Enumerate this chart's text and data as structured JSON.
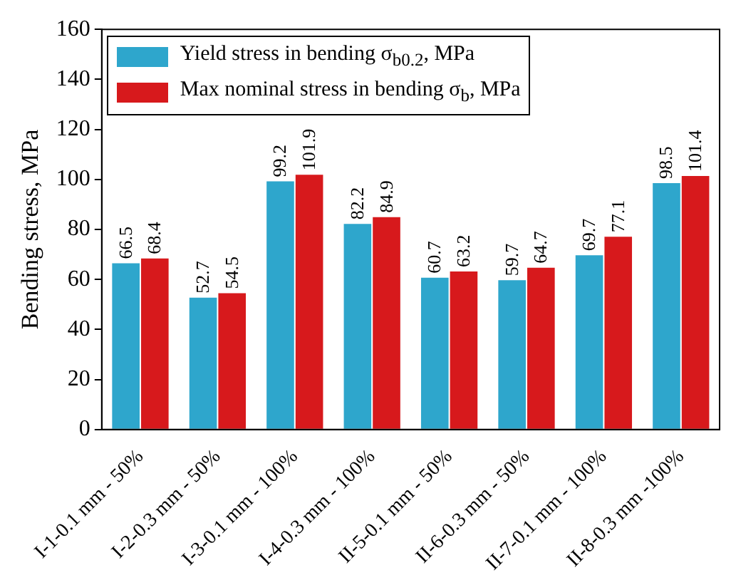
{
  "chart_data": {
    "type": "bar",
    "ylabel": "Bending stress, MPa",
    "categories": [
      "I-1-0.1 mm - 50%",
      "I-2-0.3 mm - 50%",
      "I-3-0.1 mm - 100%",
      "I-4-0.3 mm - 100%",
      "II-5-0.1 mm - 50%",
      "II-6-0.3 mm - 50%",
      "II-7-0.1 mm - 100%",
      "II-8-0.3 mm -100%"
    ],
    "series": [
      {
        "name": "Yield stress in bending σ$_{b0.2}$, MPa",
        "color": "#2ea6cc",
        "values": [
          66.5,
          52.7,
          99.2,
          82.2,
          60.7,
          59.7,
          69.7,
          98.5
        ]
      },
      {
        "name": "Max nominal stress in bending σ$_{b}$, MPa",
        "color": "#d7191c",
        "values": [
          68.4,
          54.5,
          101.9,
          84.9,
          63.2,
          64.7,
          77.1,
          101.4
        ]
      }
    ],
    "ylim": [
      0,
      160
    ],
    "yticks": [
      0,
      20,
      40,
      60,
      80,
      100,
      120,
      140,
      160
    ],
    "grid": false,
    "legend": "top left",
    "data_labels": true
  }
}
